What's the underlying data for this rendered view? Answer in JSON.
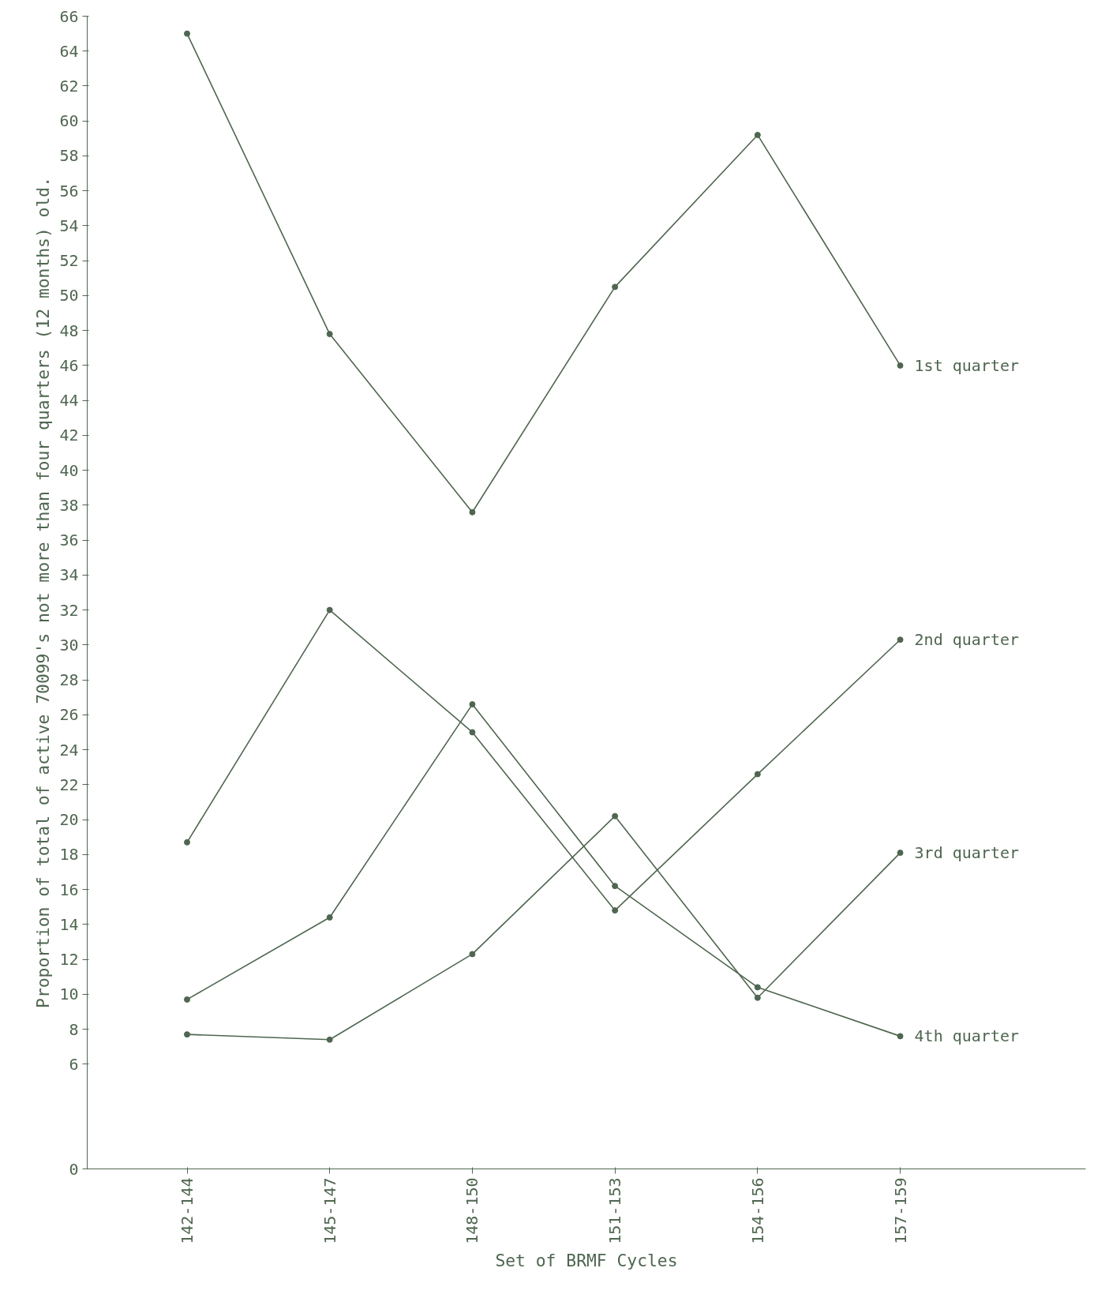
{
  "chart_data": {
    "type": "line",
    "xlabel": "Set of BRMF Cycles",
    "ylabel": "Proportion of total of active 70099's not more than four quarters (12 months) old.",
    "categories": [
      "142-144",
      "145-147",
      "148-150",
      "151-153",
      "154-156",
      "157-159"
    ],
    "ylim": [
      0,
      66
    ],
    "yticks": [
      0,
      6,
      8,
      10,
      12,
      14,
      16,
      18,
      20,
      22,
      24,
      26,
      28,
      30,
      32,
      34,
      36,
      38,
      40,
      42,
      44,
      46,
      48,
      50,
      52,
      54,
      56,
      58,
      60,
      62,
      64,
      66
    ],
    "marker": "circle",
    "line_style": "solid",
    "grid": false,
    "series": [
      {
        "name": "1st quarter",
        "color": "#4f6650",
        "values": [
          65,
          47.8,
          37.6,
          50.5,
          59.2,
          46
        ]
      },
      {
        "name": "2nd quarter",
        "color": "#4f6650",
        "values": [
          18.7,
          32,
          25,
          14.8,
          22.6,
          30.3
        ]
      },
      {
        "name": "3rd quarter",
        "color": "#4f6650",
        "values": [
          7.7,
          7.4,
          12.3,
          20.2,
          9.8,
          18.1
        ]
      },
      {
        "name": "4th quarter",
        "color": "#4f6650",
        "values": [
          9.7,
          14.4,
          26.6,
          16.2,
          10.4,
          7.6
        ]
      }
    ]
  }
}
